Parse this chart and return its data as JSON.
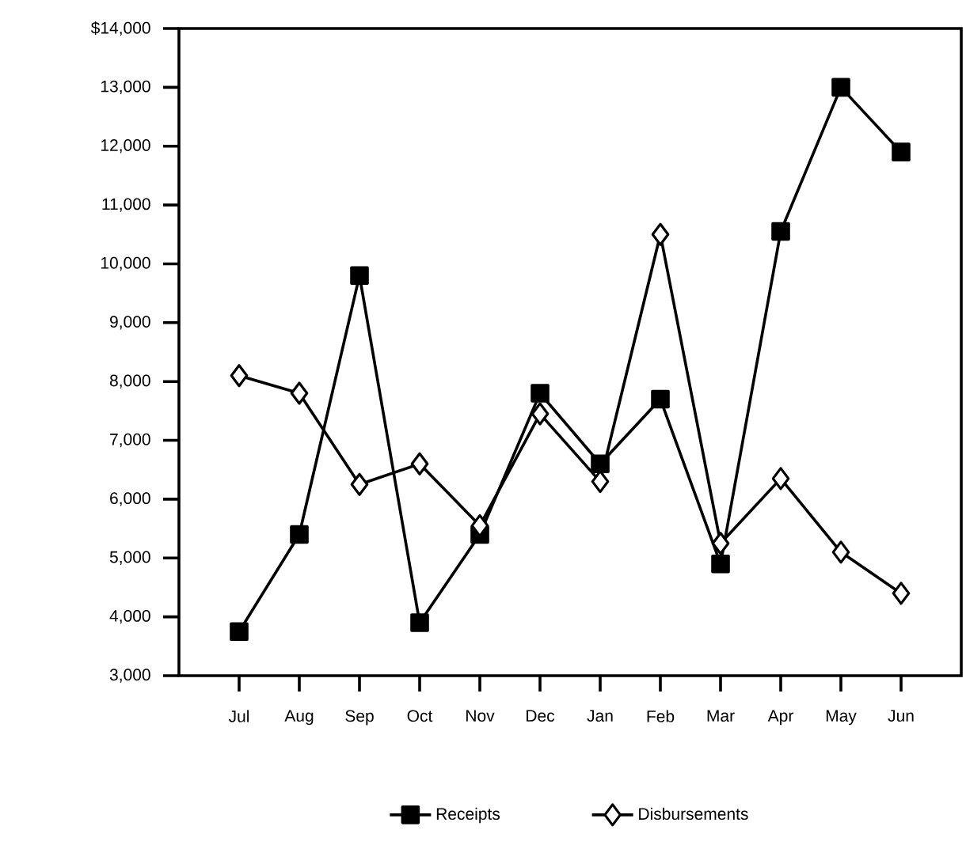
{
  "chart_data": {
    "type": "line",
    "categories": [
      "Jul",
      "Aug",
      "Sep",
      "Oct",
      "Nov",
      "Dec",
      "Jan",
      "Feb",
      "Mar",
      "Apr",
      "May",
      "Jun"
    ],
    "series": [
      {
        "name": "Receipts",
        "color": "#000000",
        "marker": "square",
        "values": [
          3750,
          5400,
          9800,
          3900,
          5400,
          7800,
          6600,
          7700,
          4900,
          10550,
          13000,
          11900
        ]
      },
      {
        "name": "Disbursements",
        "color": "#000000",
        "marker": "diamond",
        "values": [
          8100,
          7800,
          6250,
          6600,
          5550,
          7450,
          6300,
          10500,
          5250,
          6350,
          5100,
          4400
        ]
      }
    ],
    "ylim": [
      3000,
      14000
    ],
    "yticks": [
      {
        "value": 3000,
        "label": "3,000"
      },
      {
        "value": 4000,
        "label": "4,000"
      },
      {
        "value": 5000,
        "label": "5,000"
      },
      {
        "value": 6000,
        "label": "6,000"
      },
      {
        "value": 7000,
        "label": "7,000"
      },
      {
        "value": 8000,
        "label": "8,000"
      },
      {
        "value": 9000,
        "label": "9,000"
      },
      {
        "value": 10000,
        "label": "10,000"
      },
      {
        "value": 11000,
        "label": "11,000"
      },
      {
        "value": 12000,
        "label": "12,000"
      },
      {
        "value": 13000,
        "label": "13,000"
      },
      {
        "value": 14000,
        "label": "$14,000"
      }
    ],
    "grid": false,
    "legend": "bottom",
    "line_style": "solid"
  }
}
